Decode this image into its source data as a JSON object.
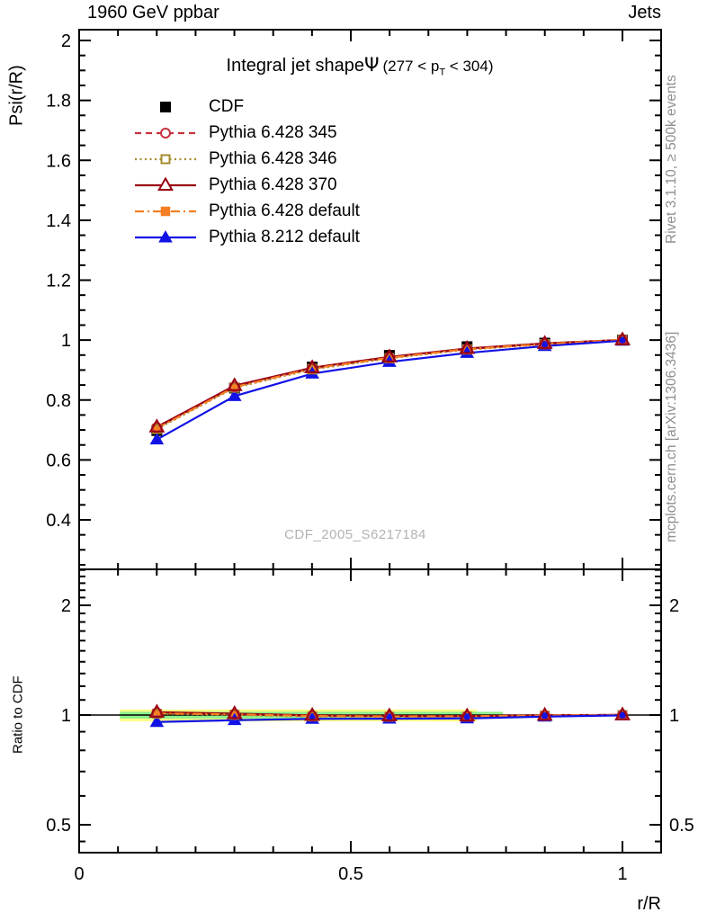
{
  "header": {
    "left": "1960 GeV ppbar",
    "right": "Jets"
  },
  "side_notes": {
    "top_right": "Rivet 3.1.10, ≥ 500k events",
    "bottom_right": "mcplots.cern.ch [arXiv:1306.3436]"
  },
  "watermark": "CDF_2005_S6217184",
  "chart_data": {
    "type": "line",
    "title": {
      "main": "Integral jet shape",
      "symbol": "Ψ",
      "range_pre": "(277 < p",
      "range_sub": "T",
      "range_post": " < 304)"
    },
    "xlabel": "r/R",
    "ylabel_main": "Psi(r/R)",
    "ylabel_ratio": "Ratio to CDF",
    "x": [
      0.143,
      0.286,
      0.429,
      0.571,
      0.714,
      0.857,
      1.0
    ],
    "series": [
      {
        "name": "CDF",
        "color": "#000000",
        "line": "none",
        "dash": "",
        "marker": "square-filled",
        "msize": 12,
        "values": [
          0.698,
          0.84,
          0.91,
          0.949,
          0.978,
          0.99,
          1.0
        ],
        "ratio": null
      },
      {
        "name": "Pythia 6.428 345",
        "color": "#c4323e",
        "line": "dashed",
        "dash": "7,5",
        "marker": "circle-open",
        "msize": 10,
        "values": [
          0.708,
          0.844,
          0.905,
          0.941,
          0.97,
          0.987,
          1.001
        ],
        "ratio": [
          1.014,
          1.005,
          0.994,
          0.991,
          0.992,
          0.997,
          1.001
        ]
      },
      {
        "name": "Pythia 6.428 346",
        "color": "#a68b2c",
        "line": "dotted",
        "dash": "2,3.5",
        "marker": "square-open",
        "msize": 9,
        "values": [
          0.703,
          0.841,
          0.902,
          0.939,
          0.968,
          0.986,
          1.0
        ],
        "ratio": [
          1.008,
          1.001,
          0.991,
          0.989,
          0.99,
          0.996,
          1.0
        ]
      },
      {
        "name": "Pythia 6.428 370",
        "color": "#990011",
        "line": "solid",
        "dash": "",
        "marker": "triangle-open",
        "msize": 12,
        "values": [
          0.71,
          0.848,
          0.908,
          0.944,
          0.972,
          0.989,
          1.001
        ],
        "ratio": [
          1.018,
          1.009,
          0.998,
          0.995,
          0.994,
          0.999,
          1.001
        ]
      },
      {
        "name": "Pythia 6.428 default",
        "color": "#f57f22",
        "line": "dashdot",
        "dash": "10,4,2,4",
        "marker": "square-filled",
        "msize": 10.5,
        "values": [
          0.705,
          0.843,
          0.905,
          0.941,
          0.97,
          0.987,
          1.001
        ],
        "ratio": [
          1.01,
          1.004,
          0.994,
          0.991,
          0.992,
          0.997,
          1.001
        ]
      },
      {
        "name": "Pythia 8.212 default",
        "color": "#1212e6",
        "line": "solid",
        "dash": "",
        "marker": "triangle-filled",
        "msize": 13,
        "values": [
          0.668,
          0.813,
          0.888,
          0.927,
          0.957,
          0.98,
          0.998
        ],
        "ratio": [
          0.957,
          0.968,
          0.976,
          0.977,
          0.979,
          0.99,
          0.998
        ]
      }
    ],
    "axes": {
      "x": {
        "range": [
          0,
          1.071
        ],
        "tick_values": [
          0,
          0.5,
          1
        ],
        "tick_labels": [
          "0",
          "0.5",
          "1"
        ],
        "minor_divisions": 14
      },
      "y_main": {
        "range": [
          0.235,
          2.036
        ],
        "tick_values": [
          0.4,
          0.6,
          0.8,
          1.0,
          1.2,
          1.4,
          1.6,
          1.8,
          2.0
        ],
        "tick_labels": [
          "0.4",
          "0.6",
          "0.8",
          "1",
          "1.2",
          "1.4",
          "1.6",
          "1.8",
          "2"
        ],
        "minor_step": 0.05
      },
      "y_ratio": {
        "scale": "log",
        "range": [
          0.42,
          2.51
        ],
        "tick_values": [
          0.5,
          1,
          2
        ],
        "tick_labels": [
          "0.5",
          "1",
          "2"
        ],
        "minor_ticks": [
          0.45,
          0.5,
          0.6,
          0.7,
          0.8,
          0.9,
          1.1,
          1.2,
          1.3,
          1.4,
          1.5,
          1.6,
          1.7,
          1.8,
          1.9,
          2.1,
          2.2,
          2.3,
          2.4,
          2.5
        ]
      }
    },
    "ratio_band": {
      "yellow": {
        "x_range": [
          0.075,
          0.732
        ],
        "y_range": [
          0.961,
          1.035
        ],
        "color": "#ffff85"
      },
      "green": {
        "x_range": [
          0.075,
          0.78
        ],
        "y_range": [
          0.978,
          1.021
        ],
        "color": "#8df08d"
      },
      "reference_line": 1.0
    }
  }
}
